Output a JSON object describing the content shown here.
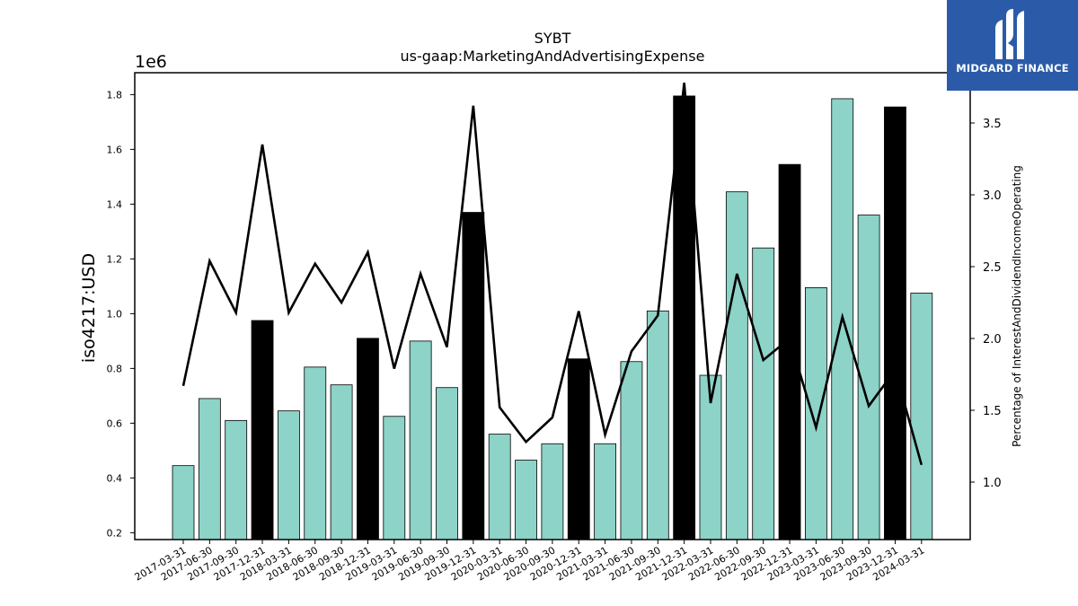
{
  "brand": {
    "name": "MIDGARD FINANCE"
  },
  "chart_data": {
    "type": "bar",
    "title": "SYBT",
    "subtitle": "us-gaap:MarketingAndAdvertisingExpense",
    "ylabel": "iso4217:USD",
    "y_offset_label": "1e6",
    "y2label": "Percentage of InterestAndDividendIncomeOperating",
    "ylim": [
      175000,
      1880000
    ],
    "y2lim": [
      0.6,
      3.85
    ],
    "yticks": [
      {
        "v": 200000,
        "label": "0.2"
      },
      {
        "v": 400000,
        "label": "0.4"
      },
      {
        "v": 600000,
        "label": "0.6"
      },
      {
        "v": 800000,
        "label": "0.8"
      },
      {
        "v": 1000000,
        "label": "1.0"
      },
      {
        "v": 1200000,
        "label": "1.2"
      },
      {
        "v": 1400000,
        "label": "1.4"
      },
      {
        "v": 1600000,
        "label": "1.6"
      },
      {
        "v": 1800000,
        "label": "1.8"
      }
    ],
    "y2ticks": [
      {
        "v": 1.0,
        "label": "1.0"
      },
      {
        "v": 1.5,
        "label": "1.5"
      },
      {
        "v": 2.0,
        "label": "2.0"
      },
      {
        "v": 2.5,
        "label": "2.5"
      },
      {
        "v": 3.0,
        "label": "3.0"
      },
      {
        "v": 3.5,
        "label": "3.5"
      }
    ],
    "categories": [
      "2017-03-31",
      "2017-06-30",
      "2017-09-30",
      "2017-12-31",
      "2018-03-31",
      "2018-06-30",
      "2018-09-30",
      "2018-12-31",
      "2019-03-31",
      "2019-06-30",
      "2019-09-30",
      "2019-12-31",
      "2020-03-31",
      "2020-06-30",
      "2020-09-30",
      "2020-12-31",
      "2021-03-31",
      "2021-06-30",
      "2021-09-30",
      "2021-12-31",
      "2022-03-31",
      "2022-06-30",
      "2022-09-30",
      "2022-12-31",
      "2023-03-31",
      "2023-06-30",
      "2023-09-30",
      "2023-12-31",
      "2024-03-31"
    ],
    "series": [
      {
        "type": "bar",
        "values": [
          445000,
          690000,
          610000,
          975000,
          645000,
          805000,
          740000,
          910000,
          625000,
          900000,
          730000,
          1370000,
          560000,
          465000,
          525000,
          835000,
          525000,
          825000,
          1010000,
          1795000,
          775000,
          1445000,
          1240000,
          1545000,
          1095000,
          1785000,
          1360000,
          1755000,
          1075000
        ],
        "highlight_every": 4,
        "highlight_start": 3,
        "color": "#8dd3c7",
        "highlight_color": "#000000"
      },
      {
        "type": "line",
        "axis": "right",
        "values": [
          1.67,
          2.54,
          2.18,
          3.35,
          2.18,
          2.52,
          2.25,
          2.6,
          1.79,
          2.45,
          1.94,
          3.62,
          1.52,
          1.28,
          1.45,
          2.19,
          1.33,
          1.91,
          2.16,
          3.78,
          1.55,
          2.45,
          1.85,
          2.0,
          1.38,
          2.15,
          1.53,
          1.78,
          1.12
        ],
        "color": "#000000"
      }
    ]
  }
}
